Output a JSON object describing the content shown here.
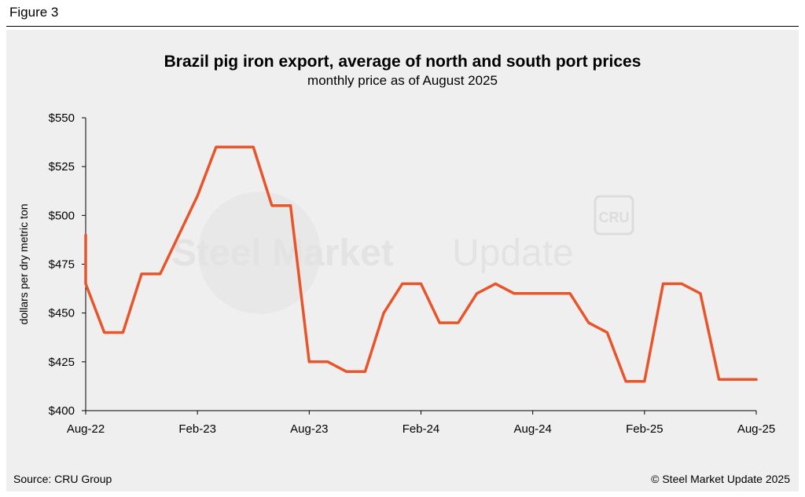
{
  "figure_label": "Figure 3",
  "watermark": {
    "text_left": "Steel Market",
    "text_right": "Update",
    "badge": "CRU"
  },
  "footer": {
    "source": "Source: CRU Group",
    "copyright": "© Steel Market Update 2025"
  },
  "chart_data": {
    "type": "line",
    "title": "Brazil pig iron export, average of north and south port prices",
    "subtitle": "monthly price as of August 2025",
    "xlabel": "",
    "ylabel": "dollars per dry metric ton",
    "ylim": [
      400,
      550
    ],
    "yticks": [
      400,
      425,
      450,
      475,
      500,
      525,
      550
    ],
    "ytick_labels": [
      "$400",
      "$425",
      "$450",
      "$475",
      "$500",
      "$525",
      "$550"
    ],
    "xticks": [
      "Aug-22",
      "Feb-23",
      "Aug-23",
      "Feb-24",
      "Aug-24",
      "Feb-25",
      "Aug-25"
    ],
    "xtick_positions": [
      0,
      6,
      12,
      18,
      24,
      30,
      36
    ],
    "grid": false,
    "series": [
      {
        "color": "#e8552a",
        "x": [
          0,
          0,
          1,
          2,
          3,
          4,
          5,
          6,
          7,
          8,
          9,
          10,
          11,
          12,
          13,
          14,
          15,
          16,
          17,
          18,
          19,
          20,
          21,
          22,
          23,
          24,
          25,
          26,
          27,
          28,
          29,
          30,
          31,
          32,
          33,
          34,
          35,
          36
        ],
        "values": [
          490,
          465,
          440,
          440,
          470,
          470,
          490,
          510,
          535,
          535,
          535,
          505,
          505,
          425,
          425,
          420,
          420,
          450,
          465,
          465,
          445,
          445,
          460,
          465,
          460,
          460,
          460,
          460,
          445,
          440,
          415,
          415,
          465,
          465,
          460,
          416,
          416,
          416
        ]
      }
    ]
  }
}
